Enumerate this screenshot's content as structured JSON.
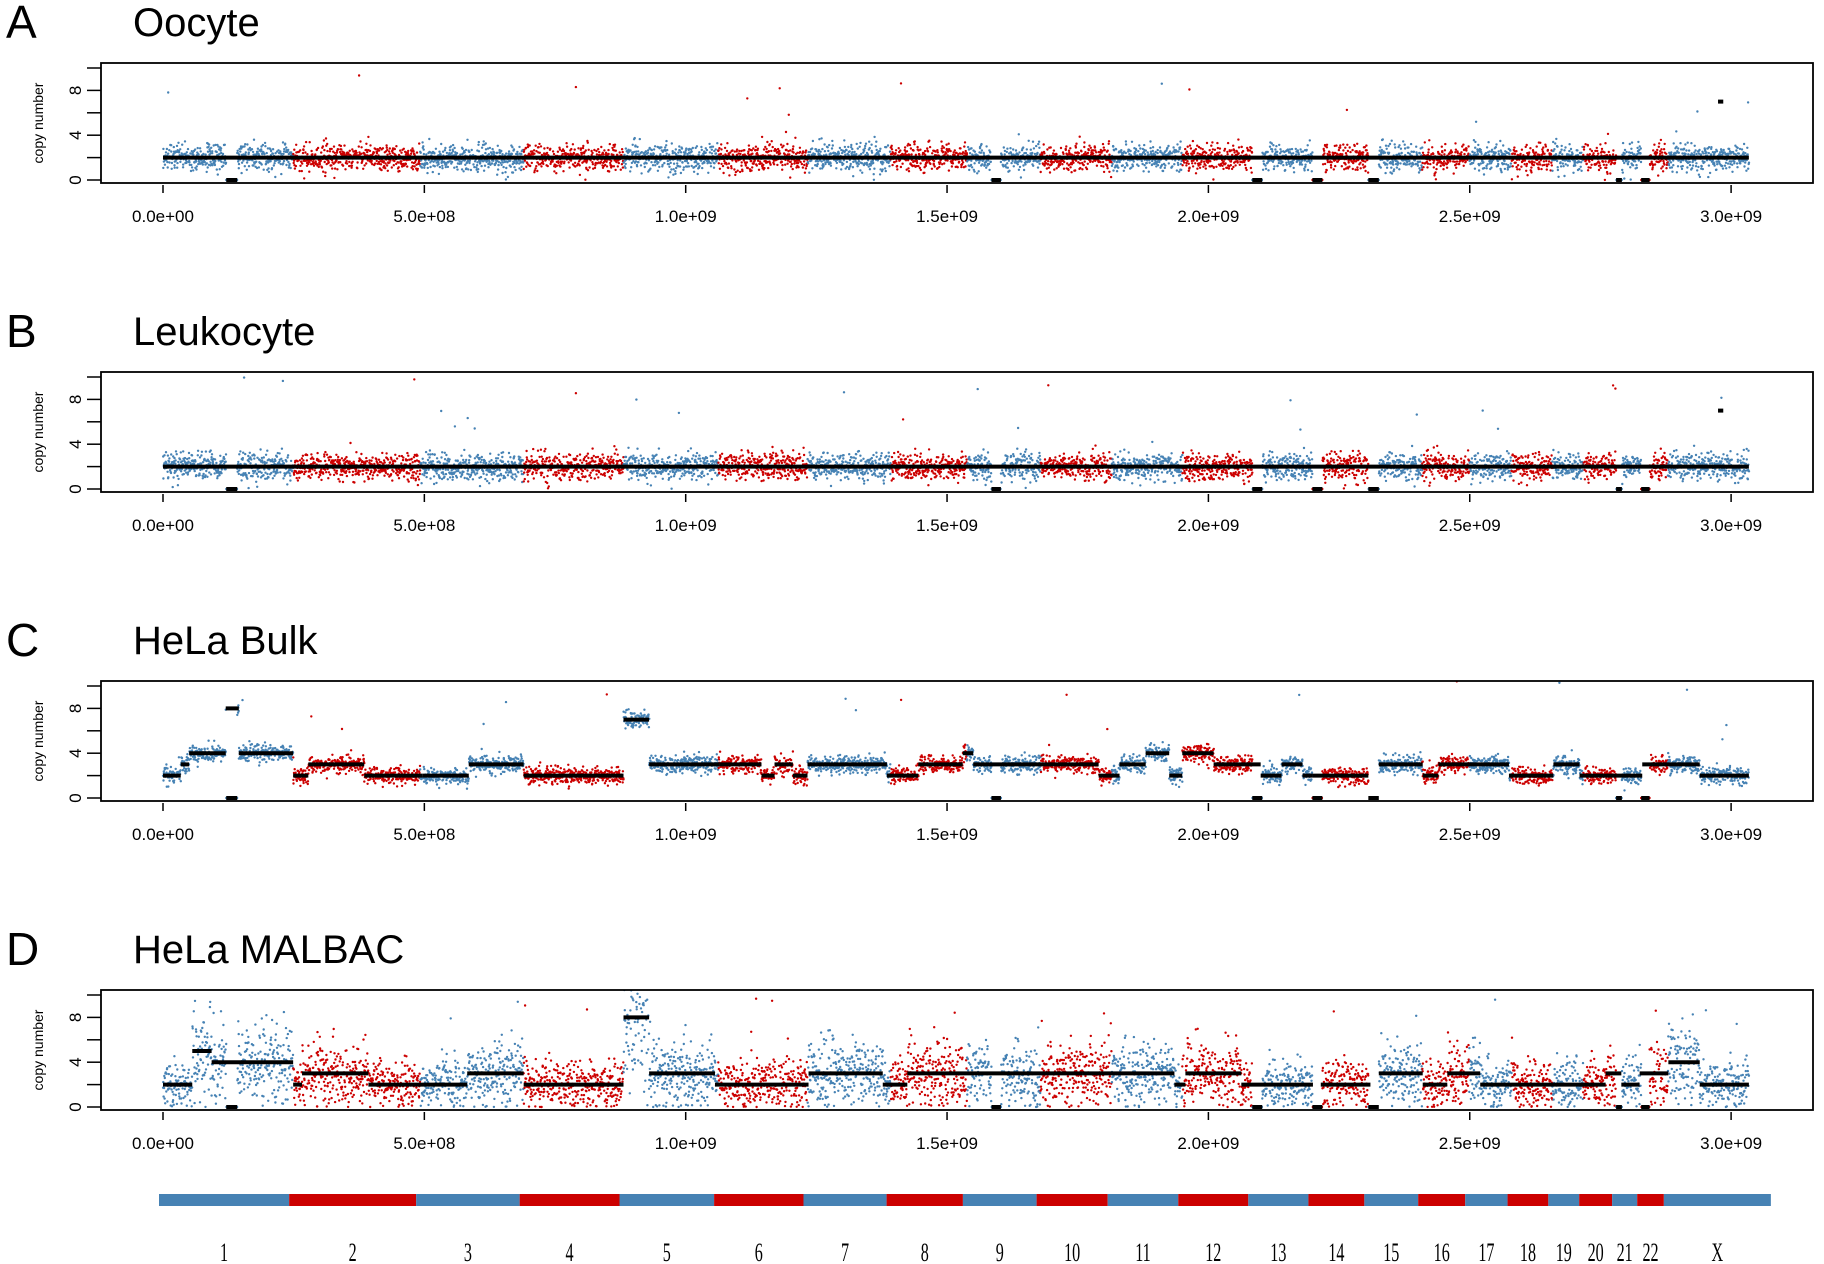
{
  "colors": {
    "odd_chromosome": "#4682b4",
    "even_chromosome": "#cc0000",
    "segment": "#000000"
  },
  "chromosomes": {
    "names": [
      "1",
      "2",
      "3",
      "4",
      "5",
      "6",
      "7",
      "8",
      "9",
      "10",
      "11",
      "12",
      "13",
      "14",
      "15",
      "16",
      "17",
      "18",
      "19",
      "20",
      "21",
      "22",
      "X"
    ],
    "boundaries": [
      0,
      249000000.0,
      492000000.0,
      690000000.0,
      881000000.0,
      1062000000.0,
      1233000000.0,
      1392000000.0,
      1538000000.0,
      1679000000.0,
      1815000000.0,
      1950000000.0,
      2084000000.0,
      2199000000.0,
      2306000000.0,
      2409000000.0,
      2499000000.0,
      2580000000.0,
      2658000000.0,
      2717000000.0,
      2780000000.0,
      2828000000.0,
      2879000000.0,
      3034000000.0
    ]
  },
  "zero_regions": [
    [
      121000000.0,
      142000000.0
    ],
    [
      1585000000.0,
      1603000000.0
    ],
    [
      2084000000.0,
      2103000000.0
    ],
    [
      2199000000.0,
      2218000000.0
    ],
    [
      2306000000.0,
      2326000000.0
    ],
    [
      2780000000.0,
      2791000000.0
    ],
    [
      2828000000.0,
      2844000000.0
    ]
  ],
  "chart_data": [
    {
      "type": "scatter",
      "panel": "A",
      "title": "Oocyte",
      "ylabel": "copy number",
      "ylim": [
        0,
        10
      ],
      "yticks": [
        0,
        2,
        4,
        6,
        8,
        10
      ],
      "ytick_labels": [
        "0",
        "4",
        "8"
      ],
      "xticks": [
        0,
        500000000.0,
        1000000000.0,
        1500000000.0,
        2000000000.0,
        2500000000.0,
        3000000000.0
      ],
      "xtick_labels": [
        "0.0e+00",
        "5.0e+08",
        "1.0e+09",
        "1.5e+09",
        "2.0e+09",
        "2.5e+09",
        "3.0e+09"
      ],
      "segments": [
        [
          0,
          3034000000.0,
          2
        ],
        [
          2975000000.0,
          2985000000.0,
          7
        ]
      ]
    },
    {
      "type": "scatter",
      "panel": "B",
      "title": "Leukocyte",
      "ylabel": "copy number",
      "ylim": [
        0,
        10
      ],
      "yticks": [
        0,
        2,
        4,
        6,
        8,
        10
      ],
      "ytick_labels": [
        "0",
        "4",
        "8"
      ],
      "xticks": [
        0,
        500000000.0,
        1000000000.0,
        1500000000.0,
        2000000000.0,
        2500000000.0,
        3000000000.0
      ],
      "xtick_labels": [
        "0.0e+00",
        "5.0e+08",
        "1.0e+09",
        "1.5e+09",
        "2.0e+09",
        "2.5e+09",
        "3.0e+09"
      ],
      "segments": [
        [
          0,
          3034000000.0,
          2
        ],
        [
          2975000000.0,
          2985000000.0,
          7
        ]
      ]
    },
    {
      "type": "scatter",
      "panel": "C",
      "title": "HeLa Bulk",
      "ylabel": "copy number",
      "ylim": [
        0,
        10
      ],
      "yticks": [
        0,
        2,
        4,
        6,
        8,
        10
      ],
      "ytick_labels": [
        "0",
        "4",
        "8"
      ],
      "xticks": [
        0,
        500000000.0,
        1000000000.0,
        1500000000.0,
        2000000000.0,
        2500000000.0,
        3000000000.0
      ],
      "xtick_labels": [
        "0.0e+00",
        "5.0e+08",
        "1.0e+09",
        "1.5e+09",
        "2.0e+09",
        "2.5e+09",
        "3.0e+09"
      ],
      "segments": [
        [
          0,
          34000000.0,
          2
        ],
        [
          34000000.0,
          50000000.0,
          3
        ],
        [
          50000000.0,
          120000000.0,
          4
        ],
        [
          120000000.0,
          145000000.0,
          8
        ],
        [
          145000000.0,
          249000000.0,
          4
        ],
        [
          249000000.0,
          278000000.0,
          2
        ],
        [
          278000000.0,
          385000000.0,
          3
        ],
        [
          385000000.0,
          497000000.0,
          2
        ],
        [
          497000000.0,
          585000000.0,
          2
        ],
        [
          585000000.0,
          690000000.0,
          3
        ],
        [
          690000000.0,
          881000000.0,
          2
        ],
        [
          881000000.0,
          930000000.0,
          7
        ],
        [
          930000000.0,
          1065000000.0,
          3
        ],
        [
          1065000000.0,
          1145000000.0,
          3
        ],
        [
          1145000000.0,
          1170000000.0,
          2
        ],
        [
          1170000000.0,
          1205000000.0,
          3
        ],
        [
          1205000000.0,
          1233000000.0,
          2
        ],
        [
          1233000000.0,
          1385000000.0,
          3
        ],
        [
          1385000000.0,
          1445000000.0,
          2
        ],
        [
          1445000000.0,
          1530000000.0,
          3
        ],
        [
          1530000000.0,
          1550000000.0,
          4
        ],
        [
          1550000000.0,
          1790000000.0,
          3
        ],
        [
          1790000000.0,
          1830000000.0,
          2
        ],
        [
          1830000000.0,
          1880000000.0,
          3
        ],
        [
          1880000000.0,
          1925000000.0,
          4
        ],
        [
          1925000000.0,
          1950000000.0,
          2
        ],
        [
          1950000000.0,
          2010000000.0,
          4
        ],
        [
          2010000000.0,
          2100000000.0,
          3
        ],
        [
          2100000000.0,
          2140000000.0,
          2
        ],
        [
          2140000000.0,
          2180000000.0,
          3
        ],
        [
          2180000000.0,
          2199000000.0,
          2
        ],
        [
          2199000000.0,
          2306000000.0,
          2
        ],
        [
          2326000000.0,
          2410000000.0,
          3
        ],
        [
          2410000000.0,
          2440000000.0,
          2
        ],
        [
          2440000000.0,
          2575000000.0,
          3
        ],
        [
          2575000000.0,
          2660000000.0,
          2
        ],
        [
          2660000000.0,
          2710000000.0,
          3
        ],
        [
          2710000000.0,
          2830000000.0,
          2
        ],
        [
          2830000000.0,
          2940000000.0,
          3
        ],
        [
          2940000000.0,
          3034000000.0,
          2
        ]
      ]
    },
    {
      "type": "scatter",
      "panel": "D",
      "title": "HeLa MALBAC",
      "ylabel": "copy number",
      "ylim": [
        0,
        10
      ],
      "yticks": [
        0,
        2,
        4,
        6,
        8,
        10
      ],
      "ytick_labels": [
        "0",
        "4",
        "8"
      ],
      "xticks": [
        0,
        500000000.0,
        1000000000.0,
        1500000000.0,
        2000000000.0,
        2500000000.0,
        3000000000.0
      ],
      "xtick_labels": [
        "0.0e+00",
        "5.0e+08",
        "1.0e+09",
        "1.5e+09",
        "2.0e+09",
        "2.5e+09",
        "3.0e+09"
      ],
      "segments": [
        [
          0,
          56000000.0,
          2
        ],
        [
          56000000.0,
          93000000.0,
          5
        ],
        [
          93000000.0,
          249000000.0,
          4
        ],
        [
          249000000.0,
          266000000.0,
          2
        ],
        [
          266000000.0,
          393000000.0,
          3
        ],
        [
          393000000.0,
          582000000.0,
          2
        ],
        [
          582000000.0,
          690000000.0,
          3
        ],
        [
          690000000.0,
          881000000.0,
          2
        ],
        [
          881000000.0,
          930000000.0,
          8
        ],
        [
          930000000.0,
          1056000000.0,
          3
        ],
        [
          1056000000.0,
          1235000000.0,
          2
        ],
        [
          1235000000.0,
          1377000000.0,
          3
        ],
        [
          1377000000.0,
          1424000000.0,
          2
        ],
        [
          1424000000.0,
          1760000000.0,
          3
        ],
        [
          1760000000.0,
          1935000000.0,
          3
        ],
        [
          1935000000.0,
          1956000000.0,
          2
        ],
        [
          1956000000.0,
          2063000000.0,
          3
        ],
        [
          2063000000.0,
          2200000000.0,
          2
        ],
        [
          2215000000.0,
          2310000000.0,
          2
        ],
        [
          2326000000.0,
          2410000000.0,
          3
        ],
        [
          2410000000.0,
          2457000000.0,
          2
        ],
        [
          2457000000.0,
          2520000000.0,
          3
        ],
        [
          2520000000.0,
          2760000000.0,
          2
        ],
        [
          2760000000.0,
          2790000000.0,
          3
        ],
        [
          2790000000.0,
          2825000000.0,
          2
        ],
        [
          2825000000.0,
          2880000000.0,
          3
        ],
        [
          2880000000.0,
          2940000000.0,
          4
        ],
        [
          2940000000.0,
          3034000000.0,
          2
        ]
      ]
    }
  ]
}
